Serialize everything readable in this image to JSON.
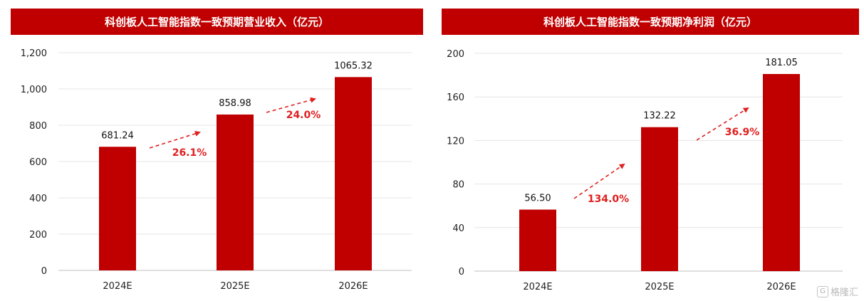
{
  "chart_data": [
    {
      "type": "bar",
      "title": "科创板人工智能指数一致预期营业收入（亿元）",
      "categories": [
        "2024E",
        "2025E",
        "2026E"
      ],
      "values": [
        681.24,
        858.98,
        1065.32
      ],
      "value_labels": [
        "681.24",
        "858.98",
        "1065.32"
      ],
      "yticks": [
        "0",
        "200",
        "400",
        "600",
        "800",
        "1,000",
        "1,200"
      ],
      "ylim": [
        0,
        1200
      ],
      "growth": [
        "26.1%",
        "24.0%"
      ],
      "bar_color": "#c00000",
      "grid": true
    },
    {
      "type": "bar",
      "title": "科创板人工智能指数一致预期净利润（亿元）",
      "categories": [
        "2024E",
        "2025E",
        "2026E"
      ],
      "values": [
        56.5,
        132.22,
        181.05
      ],
      "value_labels": [
        "56.50",
        "132.22",
        "181.05"
      ],
      "yticks": [
        "0",
        "40",
        "80",
        "120",
        "160",
        "200"
      ],
      "ylim": [
        0,
        200
      ],
      "growth": [
        "134.0%",
        "36.9%"
      ],
      "bar_color": "#c00000",
      "grid": true
    }
  ],
  "watermark": {
    "icon": "gelonghui-logo-icon",
    "icon_glyph": "G",
    "text": "格隆汇"
  }
}
